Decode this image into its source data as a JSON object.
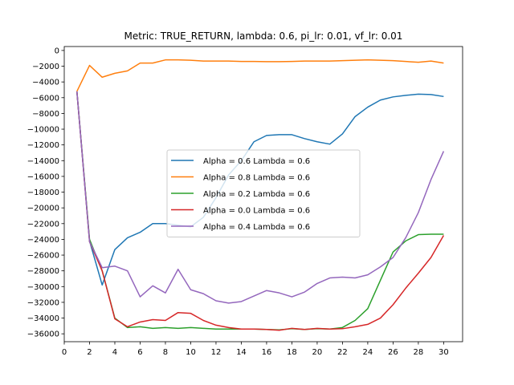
{
  "chart_data": {
    "type": "line",
    "title": "Metric: TRUE_RETURN, lambda: 0.6, pi_lr: 0.01, vf_lr: 0.01",
    "xlabel": "",
    "ylabel": "",
    "xlim": [
      0.0,
      31.5
    ],
    "ylim": [
      -37000,
      500
    ],
    "xticks": [
      0,
      2,
      4,
      6,
      8,
      10,
      12,
      14,
      16,
      18,
      20,
      22,
      24,
      26,
      28,
      30
    ],
    "yticks": [
      0,
      -2000,
      -4000,
      -6000,
      -8000,
      -10000,
      -12000,
      -14000,
      -16000,
      -18000,
      -20000,
      -22000,
      -24000,
      -26000,
      -28000,
      -30000,
      -32000,
      -34000,
      -36000
    ],
    "grid": false,
    "legend_position": "center",
    "x": [
      1,
      2,
      3,
      4,
      5,
      6,
      7,
      8,
      9,
      10,
      11,
      12,
      13,
      14,
      15,
      16,
      17,
      18,
      19,
      20,
      21,
      22,
      23,
      24,
      25,
      26,
      27,
      28,
      29,
      30
    ],
    "series": [
      {
        "name": "Alpha = 0.6  Lambda = 0.6",
        "color": "#1f77b4",
        "values": [
          -5200,
          -24200,
          -29800,
          -25300,
          -23800,
          -23100,
          -22000,
          -22000,
          -22200,
          -22400,
          -21200,
          -18700,
          -15800,
          -14000,
          -11600,
          -10800,
          -10700,
          -10700,
          -11200,
          -11600,
          -11900,
          -10600,
          -8400,
          -7200,
          -6300,
          -5900,
          -5700,
          -5550,
          -5600,
          -5850
        ]
      },
      {
        "name": "Alpha = 0.8  Lambda = 0.6",
        "color": "#ff7f0e",
        "values": [
          -5200,
          -1900,
          -3400,
          -2900,
          -2600,
          -1600,
          -1600,
          -1200,
          -1200,
          -1250,
          -1350,
          -1350,
          -1350,
          -1400,
          -1400,
          -1420,
          -1420,
          -1400,
          -1350,
          -1350,
          -1350,
          -1300,
          -1250,
          -1200,
          -1250,
          -1300,
          -1400,
          -1500,
          -1350,
          -1600
        ]
      },
      {
        "name": "Alpha = 0.2  Lambda = 0.6",
        "color": "#2ca02c",
        "values": [
          -5200,
          -24000,
          -28000,
          -34000,
          -35200,
          -35100,
          -35300,
          -35200,
          -35300,
          -35200,
          -35300,
          -35400,
          -35400,
          -35400,
          -35400,
          -35450,
          -35500,
          -35350,
          -35450,
          -35350,
          -35400,
          -35200,
          -34300,
          -32800,
          -29200,
          -25600,
          -24200,
          -23400,
          -23350,
          -23350
        ]
      },
      {
        "name": "Alpha = 0.0  Lambda = 0.6",
        "color": "#d62728",
        "values": [
          -5200,
          -24300,
          -28000,
          -34100,
          -35100,
          -34500,
          -34200,
          -34300,
          -33300,
          -33400,
          -34300,
          -34900,
          -35200,
          -35400,
          -35400,
          -35450,
          -35550,
          -35300,
          -35450,
          -35300,
          -35400,
          -35350,
          -35100,
          -34800,
          -34000,
          -32300,
          -30200,
          -28300,
          -26300,
          -23500
        ]
      },
      {
        "name": "Alpha = 0.4  Lambda = 0.6",
        "color": "#9467bd",
        "values": [
          -5200,
          -24300,
          -27600,
          -27400,
          -28000,
          -31300,
          -29900,
          -30800,
          -27800,
          -30400,
          -30900,
          -31800,
          -32100,
          -31900,
          -31200,
          -30500,
          -30800,
          -31300,
          -30700,
          -29600,
          -28900,
          -28800,
          -28900,
          -28500,
          -27500,
          -26300,
          -23800,
          -20600,
          -16400,
          -12800
        ]
      }
    ]
  }
}
